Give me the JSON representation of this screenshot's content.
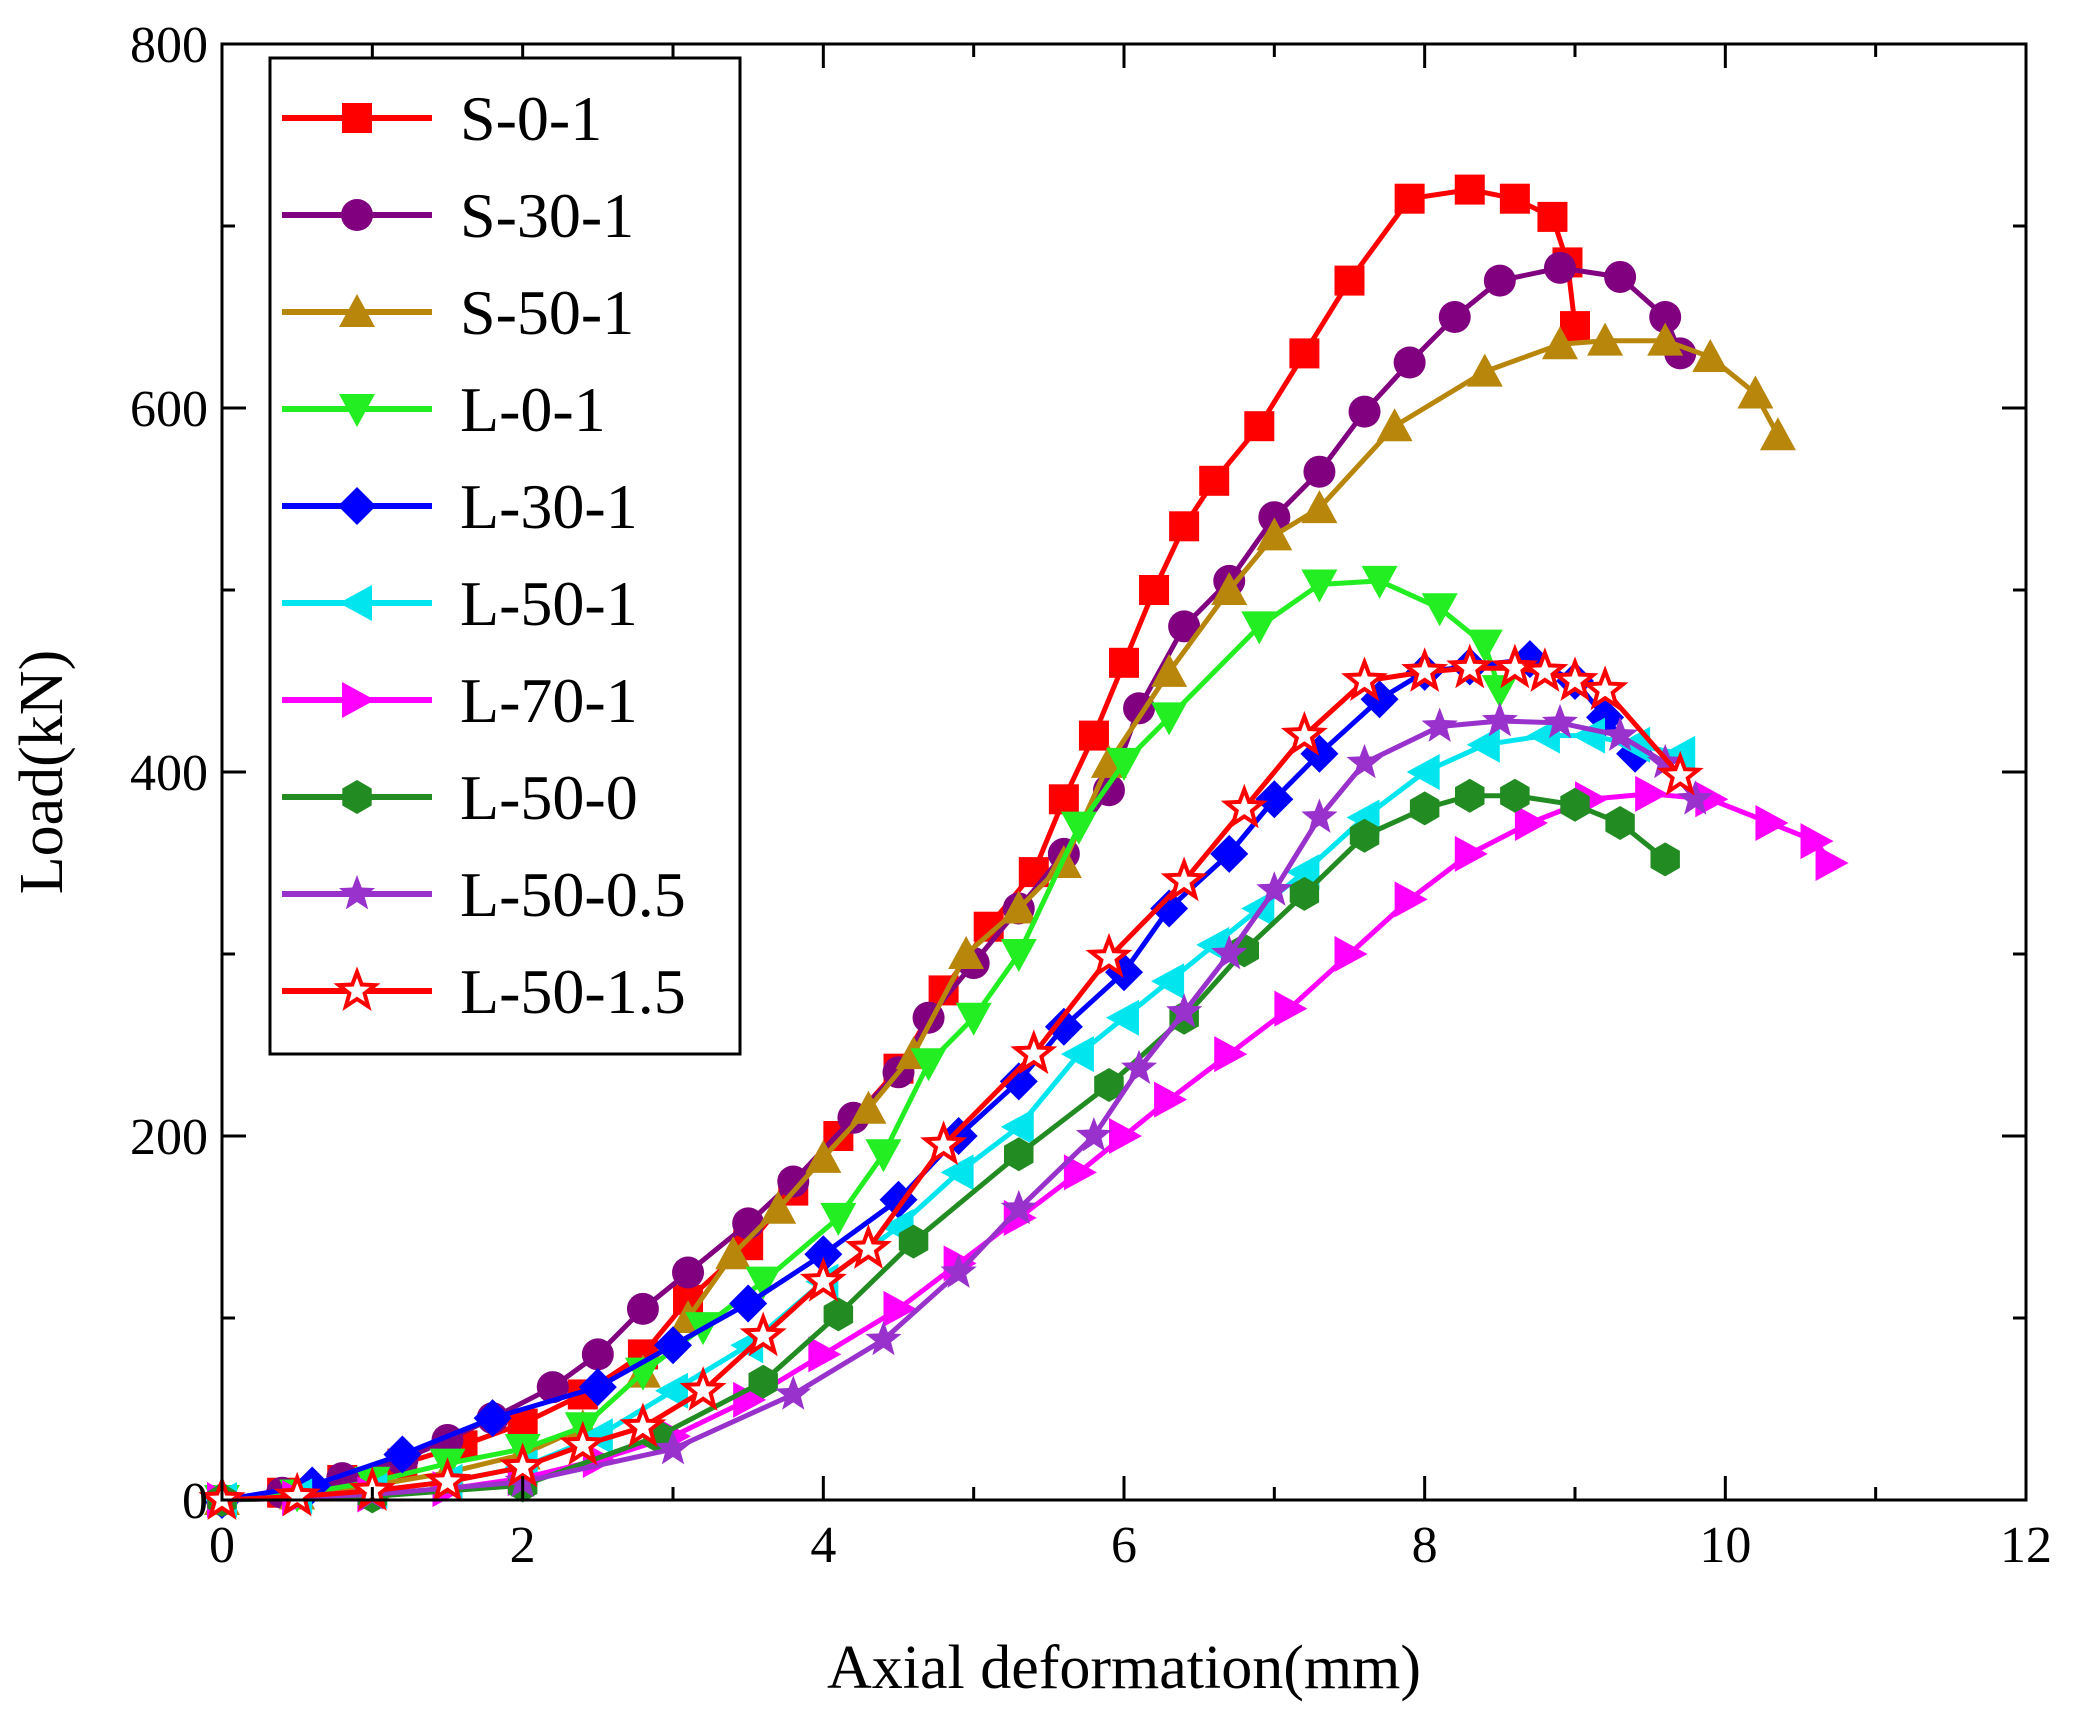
{
  "chart_data": {
    "type": "line",
    "title": "",
    "xlabel": "Axial deformation(mm)",
    "ylabel": "Load(kN)",
    "xlim": [
      0,
      12
    ],
    "ylim": [
      0,
      800
    ],
    "x_ticks": [
      0,
      2,
      4,
      6,
      8,
      10,
      12
    ],
    "y_ticks": [
      0,
      200,
      400,
      600,
      800
    ],
    "grid": false,
    "legend_position": "top-left",
    "series": [
      {
        "name": "S-0-1",
        "color": "#ff0000",
        "marker": "square",
        "x": [
          0.0,
          0.4,
          0.8,
          1.2,
          1.6,
          2.0,
          2.4,
          2.8,
          3.1,
          3.5,
          3.8,
          4.1,
          4.5,
          4.8,
          5.1,
          5.4,
          5.6,
          5.8,
          6.0,
          6.2,
          6.4,
          6.6,
          6.9,
          7.2,
          7.5,
          7.9,
          8.3,
          8.6,
          8.85,
          8.95,
          9.0
        ],
        "y": [
          0,
          4,
          11,
          20,
          30,
          42,
          58,
          80,
          110,
          140,
          170,
          200,
          237,
          280,
          315,
          345,
          385,
          420,
          460,
          500,
          535,
          560,
          590,
          630,
          670,
          715,
          720,
          715,
          705,
          680,
          645
        ]
      },
      {
        "name": "S-30-1",
        "color": "#800080",
        "marker": "circle",
        "x": [
          0.0,
          0.4,
          0.8,
          1.2,
          1.5,
          1.8,
          2.2,
          2.5,
          2.8,
          3.1,
          3.5,
          3.8,
          4.2,
          4.5,
          4.7,
          5.0,
          5.3,
          5.6,
          5.9,
          6.1,
          6.4,
          6.7,
          7.0,
          7.3,
          7.6,
          7.9,
          8.2,
          8.5,
          8.9,
          9.3,
          9.6,
          9.7
        ],
        "y": [
          0,
          4,
          12,
          22,
          33,
          45,
          62,
          80,
          105,
          125,
          152,
          175,
          210,
          235,
          265,
          295,
          325,
          355,
          390,
          435,
          480,
          505,
          540,
          565,
          598,
          625,
          650,
          670,
          677,
          672,
          650,
          630
        ]
      },
      {
        "name": "S-50-1",
        "color": "#b8860b",
        "marker": "triangle-up",
        "x": [
          0.0,
          0.5,
          1.0,
          1.5,
          2.0,
          2.4,
          2.8,
          3.1,
          3.4,
          3.7,
          4.0,
          4.3,
          4.6,
          4.95,
          5.3,
          5.6,
          5.9,
          6.3,
          6.7,
          7.0,
          7.3,
          7.8,
          8.4,
          8.9,
          9.2,
          9.6,
          9.9,
          10.2,
          10.35
        ],
        "y": [
          0,
          3,
          8,
          15,
          25,
          40,
          70,
          100,
          135,
          160,
          188,
          215,
          245,
          300,
          325,
          350,
          405,
          455,
          500,
          530,
          545,
          590,
          620,
          635,
          637,
          637,
          628,
          608,
          585
        ]
      },
      {
        "name": "L-0-1",
        "color": "#22ee22",
        "marker": "triangle-down",
        "x": [
          0.0,
          0.5,
          1.0,
          1.5,
          2.0,
          2.4,
          2.8,
          3.2,
          3.6,
          4.1,
          4.4,
          4.7,
          5.0,
          5.3,
          5.7,
          6.0,
          6.3,
          6.9,
          7.3,
          7.7,
          8.1,
          8.4,
          8.5
        ],
        "y": [
          0,
          3,
          10,
          20,
          28,
          40,
          70,
          95,
          120,
          155,
          190,
          240,
          265,
          300,
          370,
          405,
          430,
          480,
          503,
          505,
          490,
          470,
          445
        ]
      },
      {
        "name": "L-30-1",
        "color": "#0000ff",
        "marker": "diamond",
        "x": [
          0.0,
          0.6,
          1.2,
          1.8,
          2.5,
          3.0,
          3.5,
          4.0,
          4.5,
          4.9,
          5.3,
          5.6,
          6.0,
          6.3,
          6.7,
          7.0,
          7.3,
          7.7,
          8.0,
          8.3,
          8.7,
          9.0,
          9.2,
          9.4
        ],
        "y": [
          0,
          8,
          25,
          45,
          62,
          85,
          108,
          135,
          165,
          200,
          230,
          260,
          290,
          325,
          355,
          385,
          410,
          440,
          455,
          458,
          462,
          450,
          430,
          410
        ]
      },
      {
        "name": "L-50-1",
        "color": "#00e5ee",
        "marker": "triangle-left",
        "x": [
          0.0,
          0.5,
          1.0,
          1.5,
          2.0,
          2.5,
          3.0,
          3.5,
          4.0,
          4.5,
          4.9,
          5.3,
          5.7,
          6.0,
          6.3,
          6.6,
          6.9,
          7.2,
          7.6,
          8.0,
          8.4,
          8.8,
          9.1,
          9.4,
          9.7
        ],
        "y": [
          0,
          2,
          5,
          10,
          18,
          35,
          60,
          85,
          120,
          150,
          180,
          205,
          245,
          265,
          285,
          305,
          325,
          345,
          375,
          400,
          415,
          420,
          420,
          415,
          410
        ]
      },
      {
        "name": "L-70-1",
        "color": "#ff00ff",
        "marker": "triangle-right",
        "x": [
          0.0,
          0.5,
          1.0,
          1.5,
          2.0,
          2.5,
          3.0,
          3.5,
          4.0,
          4.5,
          4.9,
          5.3,
          5.7,
          6.0,
          6.3,
          6.7,
          7.1,
          7.5,
          7.9,
          8.3,
          8.7,
          9.1,
          9.5,
          9.9,
          10.3,
          10.6,
          10.7
        ],
        "y": [
          0,
          1,
          3,
          6,
          12,
          22,
          35,
          55,
          80,
          105,
          130,
          155,
          180,
          200,
          220,
          245,
          270,
          300,
          330,
          355,
          372,
          385,
          388,
          385,
          372,
          362,
          350
        ]
      },
      {
        "name": "L-50-0",
        "color": "#228b22",
        "marker": "hexagon",
        "x": [
          0.0,
          1.0,
          2.0,
          2.9,
          3.6,
          4.1,
          4.6,
          5.3,
          5.9,
          6.4,
          6.8,
          7.2,
          7.6,
          8.0,
          8.3,
          8.6,
          9.0,
          9.3,
          9.6
        ],
        "y": [
          0,
          2,
          8,
          35,
          65,
          102,
          142,
          190,
          228,
          265,
          302,
          333,
          365,
          380,
          387,
          387,
          382,
          372,
          352
        ]
      },
      {
        "name": "L-50-0.5",
        "color": "#9932cc",
        "marker": "star",
        "x": [
          0.0,
          1.0,
          2.0,
          3.0,
          3.8,
          4.4,
          4.9,
          5.3,
          5.8,
          6.1,
          6.4,
          6.7,
          7.0,
          7.3,
          7.6,
          8.1,
          8.5,
          8.9,
          9.3,
          9.6,
          9.8
        ],
        "y": [
          0,
          3,
          10,
          28,
          58,
          88,
          125,
          160,
          200,
          237,
          268,
          300,
          335,
          375,
          405,
          425,
          428,
          427,
          420,
          405,
          385
        ]
      },
      {
        "name": "L-50-1.5",
        "color": "#ff0000",
        "marker": "star-open",
        "x": [
          0.0,
          0.5,
          1.0,
          1.5,
          2.0,
          2.4,
          2.8,
          3.2,
          3.6,
          4.0,
          4.3,
          4.8,
          5.4,
          5.9,
          6.4,
          6.8,
          7.2,
          7.6,
          8.0,
          8.3,
          8.6,
          8.8,
          9.0,
          9.2,
          9.7
        ],
        "y": [
          0,
          2,
          5,
          10,
          18,
          30,
          40,
          60,
          90,
          120,
          138,
          195,
          245,
          298,
          340,
          380,
          420,
          450,
          455,
          457,
          457,
          455,
          450,
          445,
          398
        ]
      }
    ]
  }
}
